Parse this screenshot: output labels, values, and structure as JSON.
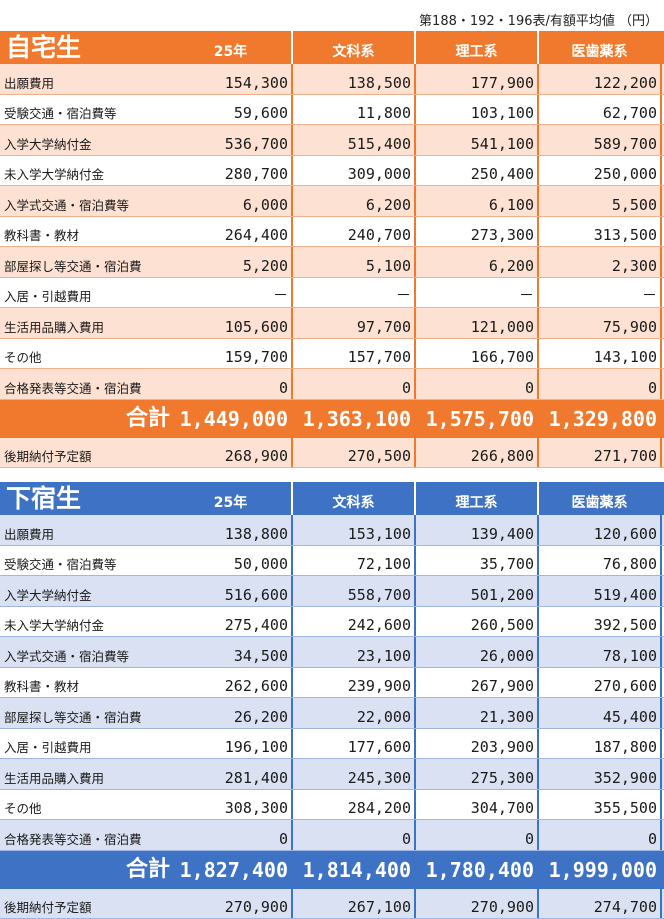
{
  "note": "第188・192・196表/有額平均値 （円）",
  "columns": [
    "25年",
    "文科系",
    "理工系",
    "医歯薬系"
  ],
  "home": {
    "title": "自宅生",
    "rows": [
      {
        "label": "出願費用",
        "values": [
          "154,300",
          "138,500",
          "177,900",
          "122,200"
        ]
      },
      {
        "label": "受験交通・宿泊費等",
        "values": [
          "59,600",
          "11,800",
          "103,100",
          "62,700"
        ]
      },
      {
        "label": "入学大学納付金",
        "values": [
          "536,700",
          "515,400",
          "541,100",
          "589,700"
        ]
      },
      {
        "label": "未入学大学納付金",
        "values": [
          "280,700",
          "309,000",
          "250,400",
          "250,000"
        ]
      },
      {
        "label": "入学式交通・宿泊費等",
        "values": [
          "6,000",
          "6,200",
          "6,100",
          "5,500"
        ]
      },
      {
        "label": "教科書・教材",
        "values": [
          "264,400",
          "240,700",
          "273,300",
          "313,500"
        ]
      },
      {
        "label": "部屋探し等交通・宿泊費",
        "values": [
          "5,200",
          "5,100",
          "6,200",
          "2,300"
        ]
      },
      {
        "label": "入居・引越費用",
        "values": [
          "－",
          "－",
          "－",
          "－"
        ]
      },
      {
        "label": "生活用品購入費用",
        "values": [
          "105,600",
          "97,700",
          "121,000",
          "75,900"
        ]
      },
      {
        "label": "その他",
        "values": [
          "159,700",
          "157,700",
          "166,700",
          "143,100"
        ]
      },
      {
        "label": "合格発表等交通・宿泊費",
        "values": [
          "0",
          "0",
          "0",
          "0"
        ]
      }
    ],
    "total_label": "合計",
    "totals": [
      "1,449,000",
      "1,363,100",
      "1,575,700",
      "1,329,800"
    ],
    "deferred": {
      "label": "後期納付予定額",
      "values": [
        "268,900",
        "270,500",
        "266,800",
        "271,700"
      ]
    }
  },
  "lodge": {
    "title": "下宿生",
    "rows": [
      {
        "label": "出願費用",
        "values": [
          "138,800",
          "153,100",
          "139,400",
          "120,600"
        ]
      },
      {
        "label": "受験交通・宿泊費等",
        "values": [
          "50,000",
          "72,100",
          "35,700",
          "76,800"
        ]
      },
      {
        "label": "入学大学納付金",
        "values": [
          "516,600",
          "558,700",
          "501,200",
          "519,400"
        ]
      },
      {
        "label": "未入学大学納付金",
        "values": [
          "275,400",
          "242,600",
          "260,500",
          "392,500"
        ]
      },
      {
        "label": "入学式交通・宿泊費等",
        "values": [
          "34,500",
          "23,100",
          "26,000",
          "78,100"
        ]
      },
      {
        "label": "教科書・教材",
        "values": [
          "262,600",
          "239,900",
          "267,900",
          "270,600"
        ]
      },
      {
        "label": "部屋探し等交通・宿泊費",
        "values": [
          "26,200",
          "22,000",
          "21,300",
          "45,400"
        ]
      },
      {
        "label": "入居・引越費用",
        "values": [
          "196,100",
          "177,600",
          "203,900",
          "187,800"
        ]
      },
      {
        "label": "生活用品購入費用",
        "values": [
          "281,400",
          "245,300",
          "275,300",
          "352,900"
        ]
      },
      {
        "label": "その他",
        "values": [
          "308,300",
          "284,200",
          "304,700",
          "355,500"
        ]
      },
      {
        "label": "合格発表等交通・宿泊費",
        "values": [
          "0",
          "0",
          "0",
          "0"
        ]
      }
    ],
    "total_label": "合計",
    "totals": [
      "1,827,400",
      "1,814,400",
      "1,780,400",
      "1,999,000"
    ],
    "deferred": {
      "label": "後期納付予定額",
      "values": [
        "270,900",
        "267,100",
        "270,900",
        "274,700"
      ]
    }
  }
}
